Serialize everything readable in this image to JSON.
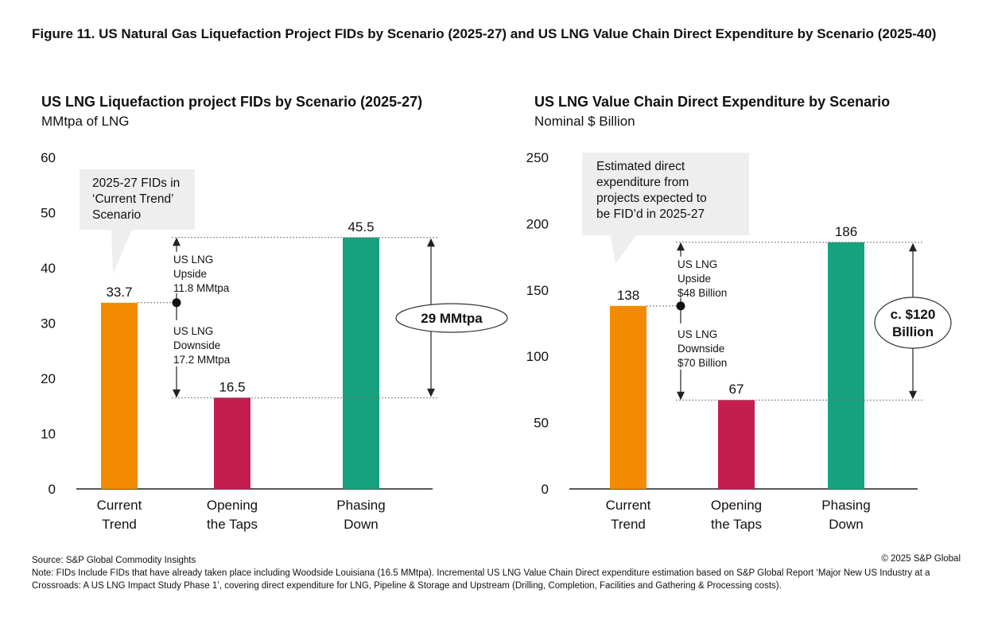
{
  "figure_title": "Figure 11. US Natural Gas Liquefaction Project FIDs by Scenario (2025-27) and US LNG Value Chain Direct Expenditure by Scenario (2025-40)",
  "colors": {
    "current_trend": "#F28B00",
    "opening_the_taps": "#C41E4F",
    "phasing_down": "#16A27F",
    "callout_bg": "#EEEEEE",
    "axis": "#222222"
  },
  "chart_data": [
    {
      "type": "bar",
      "title": "US LNG Liquefaction project FIDs by Scenario (2025-27)",
      "subtitle": "MMtpa of LNG",
      "categories": [
        [
          "Current",
          "Trend"
        ],
        [
          "Opening",
          "the Taps"
        ],
        [
          "Phasing",
          "Down"
        ]
      ],
      "values": [
        33.7,
        16.5,
        45.5
      ],
      "value_labels": [
        "33.7",
        "16.5",
        "45.5"
      ],
      "ylim": [
        0,
        60
      ],
      "yticks": [
        0,
        10,
        20,
        30,
        40,
        50,
        60
      ],
      "callout": [
        "2025-27 FIDs in",
        "‘Current Trend’",
        "Scenario"
      ],
      "upside_label": [
        "US LNG",
        "Upside",
        "11.8 MMtpa"
      ],
      "downside_label": [
        "US LNG",
        "Downside",
        "17.2 MMtpa"
      ],
      "range_label": [
        "29 MMtpa"
      ]
    },
    {
      "type": "bar",
      "title": "US LNG Value Chain Direct Expenditure by Scenario",
      "subtitle": "Nominal $ Billion",
      "categories": [
        [
          "Current",
          "Trend"
        ],
        [
          "Opening",
          "the Taps"
        ],
        [
          "Phasing",
          "Down"
        ]
      ],
      "values": [
        138,
        67,
        186
      ],
      "value_labels": [
        "138",
        "67",
        "186"
      ],
      "ylim": [
        0,
        250
      ],
      "yticks": [
        0,
        50,
        100,
        150,
        200,
        250
      ],
      "callout": [
        "Estimated direct",
        "expenditure from",
        "projects expected to",
        "be FID’d in 2025-27"
      ],
      "upside_label": [
        "US LNG",
        "Upside",
        "$48 Billion"
      ],
      "downside_label": [
        "US LNG",
        "Downside",
        "$70 Billion"
      ],
      "range_label": [
        "c. $120",
        "Billion"
      ]
    }
  ],
  "footer": {
    "source": "Source: S&P Global Commodity Insights",
    "copyright": "© 2025 S&P Global",
    "note": "Note: FIDs Include FIDs that have already taken place including Woodside Louisiana (16.5 MMtpa). Incremental US LNG Value Chain Direct expenditure estimation based on S&P Global Report ‘Major New US Industry at a Crossroads: A US LNG Impact Study Phase 1’, covering direct expenditure for LNG, Pipeline & Storage and Upstream (Drilling, Completion, Facilities and Gathering & Processing costs)."
  }
}
